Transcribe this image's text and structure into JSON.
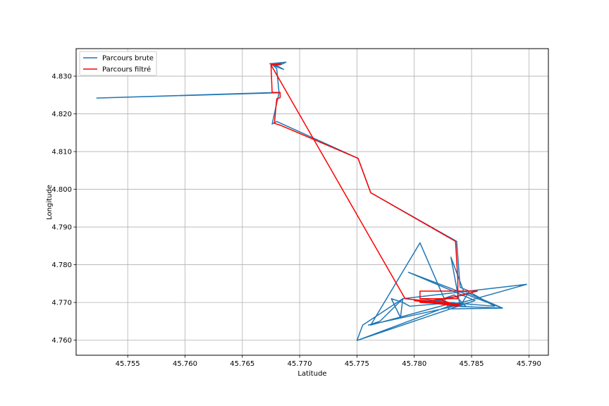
{
  "chart_data": {
    "type": "line",
    "title": "",
    "xlabel": "Latitude",
    "ylabel": "Longitude",
    "xlim": [
      45.7505,
      45.7917
    ],
    "ylim": [
      4.756,
      4.8373
    ],
    "xticks": [
      45.755,
      45.76,
      45.765,
      45.77,
      45.775,
      45.78,
      45.785,
      45.79
    ],
    "xtick_labels": [
      "45.755",
      "45.760",
      "45.765",
      "45.770",
      "45.775",
      "45.780",
      "45.785",
      "45.790"
    ],
    "yticks": [
      4.76,
      4.77,
      4.78,
      4.79,
      4.8,
      4.81,
      4.82,
      4.83
    ],
    "ytick_labels": [
      "4.760",
      "4.770",
      "4.780",
      "4.790",
      "4.800",
      "4.810",
      "4.820",
      "4.830"
    ],
    "grid": true,
    "legend_position": "top-left",
    "series": [
      {
        "name": "Parcours brute",
        "color": "#1f77b4",
        "x": [
          45.7678,
          45.7683,
          45.7688,
          45.7674,
          45.768,
          45.7686,
          45.768,
          45.7676,
          45.768,
          45.7682,
          45.7523,
          45.7682,
          45.7676,
          45.768,
          45.7751,
          45.7762,
          45.7837,
          45.784,
          45.7848,
          45.784,
          45.7832,
          45.7843,
          45.7877,
          45.783,
          45.7805,
          45.7762,
          45.7835,
          45.7796,
          45.779,
          45.778,
          45.7788,
          45.779,
          45.777,
          45.776,
          45.7835,
          45.7877,
          45.7795,
          45.7853,
          45.775,
          45.783,
          45.7898,
          45.779,
          45.7755,
          45.775,
          45.783,
          45.7845,
          45.7835,
          45.7815,
          45.785,
          45.787,
          45.783,
          45.7805,
          45.7838,
          45.78,
          45.7838,
          45.783,
          45.784,
          45.7836,
          45.7842,
          45.7834,
          45.784,
          45.7838,
          45.784
        ],
        "y": [
          4.833,
          4.833,
          4.8337,
          4.8333,
          4.8328,
          4.8318,
          4.8325,
          4.8331,
          4.832,
          4.8257,
          4.8242,
          4.8256,
          4.8173,
          4.818,
          4.8082,
          4.7991,
          4.7862,
          4.774,
          4.773,
          4.769,
          4.782,
          4.773,
          4.7685,
          4.7683,
          4.7858,
          4.764,
          4.77,
          4.769,
          4.77,
          4.771,
          4.766,
          4.771,
          4.765,
          4.764,
          4.769,
          4.7685,
          4.778,
          4.7705,
          4.7599,
          4.769,
          4.7748,
          4.771,
          4.764,
          4.7599,
          4.769,
          4.769,
          4.772,
          4.77,
          4.7725,
          4.769,
          4.77,
          4.771,
          4.7696,
          4.7705,
          4.769,
          4.7693,
          4.77,
          4.7692,
          4.7697,
          4.7694,
          4.769,
          4.7695,
          4.7692
        ]
      },
      {
        "name": "Parcours filtré",
        "color": "#ff0000",
        "x": [
          45.7675,
          45.7684,
          45.768,
          45.7675,
          45.7676,
          45.7683,
          45.7683,
          45.768,
          45.7678,
          45.7683,
          45.7751,
          45.7762,
          45.7836,
          45.7838,
          45.7838,
          45.7805,
          45.7805,
          45.7855,
          45.7835,
          45.7805,
          45.7838,
          45.78,
          45.7838,
          45.782,
          45.783,
          45.7838,
          45.784,
          45.7838,
          45.783,
          45.7792,
          45.7675,
          45.7683,
          45.7678
        ],
        "y": [
          4.833,
          4.8333,
          4.833,
          4.833,
          4.8257,
          4.8257,
          4.8243,
          4.824,
          4.8175,
          4.817,
          4.8082,
          4.7991,
          4.7862,
          4.776,
          4.771,
          4.771,
          4.773,
          4.773,
          4.7715,
          4.77,
          4.7695,
          4.7705,
          4.769,
          4.771,
          4.77,
          4.7692,
          4.7697,
          4.769,
          4.7698,
          4.771,
          4.833,
          4.8333,
          4.833
        ]
      }
    ]
  }
}
